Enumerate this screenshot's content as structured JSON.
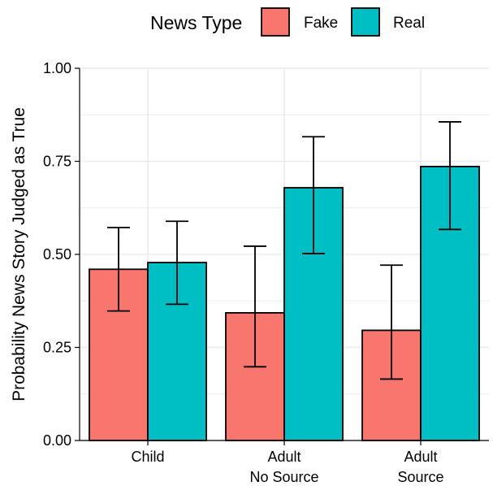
{
  "chart_data": {
    "type": "bar",
    "title": "",
    "xlabel": "",
    "ylabel": "Probability News Story Judged as True",
    "ylim": [
      0,
      1
    ],
    "yticks": [
      "0.00",
      "0.25",
      "0.50",
      "0.75",
      "1.00"
    ],
    "yticks_values": [
      0,
      0.25,
      0.5,
      0.75,
      1.0
    ],
    "categories": [
      [
        "Child"
      ],
      [
        "Adult",
        "No Source"
      ],
      [
        "Adult",
        "Source"
      ]
    ],
    "legend": {
      "title": "News Type",
      "placement": "top",
      "entries": [
        "Fake",
        "Real"
      ]
    },
    "series": [
      {
        "name": "Fake",
        "color": "#F8766D",
        "values": [
          0.46,
          0.343,
          0.296
        ],
        "error_low": [
          0.348,
          0.198,
          0.165
        ],
        "error_high": [
          0.572,
          0.522,
          0.471
        ]
      },
      {
        "name": "Real",
        "color": "#00BFC4",
        "values": [
          0.478,
          0.679,
          0.736
        ],
        "error_low": [
          0.366,
          0.502,
          0.567
        ],
        "error_high": [
          0.589,
          0.816,
          0.856
        ]
      }
    ],
    "grid": true
  }
}
